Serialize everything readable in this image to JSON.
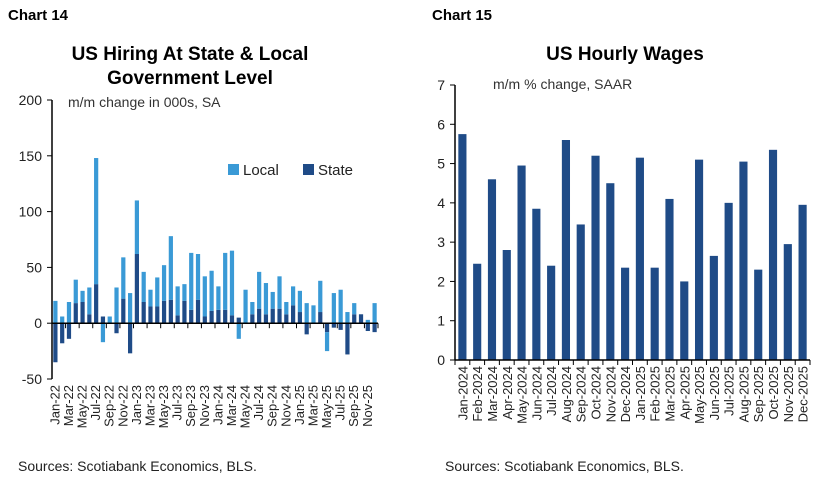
{
  "chart_data": [
    {
      "type": "bar",
      "stacked": true,
      "label": "Chart 14",
      "title": "US Hiring At State & Local Government Level",
      "subtitle": "m/m change in 000s, SA",
      "source": "Sources: Scotiabank Economics, BLS.",
      "ylim": [
        -50,
        200
      ],
      "yticks": [
        -50,
        0,
        50,
        100,
        150,
        200
      ],
      "legend_position": "top-right",
      "categories": [
        "Jan-22",
        "Feb-22",
        "Mar-22",
        "Apr-22",
        "May-22",
        "Jun-22",
        "Jul-22",
        "Aug-22",
        "Sep-22",
        "Oct-22",
        "Nov-22",
        "Dec-22",
        "Jan-23",
        "Feb-23",
        "Mar-23",
        "Apr-23",
        "May-23",
        "Jun-23",
        "Jul-23",
        "Aug-23",
        "Sep-23",
        "Oct-23",
        "Nov-23",
        "Dec-23",
        "Jan-24",
        "Feb-24",
        "Mar-24",
        "Apr-24",
        "May-24",
        "Jun-24",
        "Jul-24",
        "Aug-24",
        "Sep-24",
        "Oct-24",
        "Nov-24",
        "Dec-24",
        "Jan-25",
        "Feb-25",
        "Mar-25",
        "Apr-25",
        "May-25",
        "Jun-25",
        "Jul-25",
        "Aug-25",
        "Sep-25",
        "Oct-25",
        "Nov-25",
        "Dec-25"
      ],
      "tick_labels": [
        "Jan-22",
        "Mar-22",
        "May-22",
        "Jul-22",
        "Sep-22",
        "Nov-22",
        "Jan-23",
        "Mar-23",
        "May-23",
        "Jul-23",
        "Sep-23",
        "Nov-23",
        "Jan-24",
        "Mar-24",
        "May-24",
        "Jul-24",
        "Sep-24",
        "Nov-24",
        "Jan-25",
        "Mar-25",
        "May-25",
        "Jul-25",
        "Sep-25",
        "Nov-25"
      ],
      "series": [
        {
          "name": "Local",
          "color": "#3a9ad6",
          "values": [
            20,
            6,
            19,
            21,
            10,
            24,
            113,
            -17,
            6,
            32,
            37,
            27,
            48,
            27,
            15,
            26,
            32,
            57,
            26,
            15,
            51,
            41,
            36,
            36,
            21,
            51,
            58,
            -14,
            30,
            11,
            33,
            28,
            15,
            29,
            11,
            17,
            19,
            18,
            16,
            28,
            -17,
            27,
            30,
            10,
            10,
            0,
            3,
            18
          ]
        },
        {
          "name": "State",
          "color": "#1f4b87",
          "values": [
            -35,
            -18,
            -14,
            18,
            19,
            8,
            35,
            6,
            0,
            -9,
            22,
            -27,
            62,
            19,
            15,
            15,
            20,
            21,
            7,
            20,
            12,
            21,
            6,
            11,
            12,
            12,
            7,
            5,
            0,
            8,
            13,
            8,
            13,
            13,
            8,
            16,
            10,
            -10,
            0,
            10,
            -8,
            -4,
            -6,
            -28,
            8,
            8,
            -7,
            -8
          ]
        }
      ]
    },
    {
      "type": "bar",
      "label": "Chart 15",
      "title": "US Hourly Wages",
      "subtitle": "m/m % change, SAAR",
      "source": "Sources: Scotiabank Economics, BLS.",
      "ylim": [
        0,
        7
      ],
      "yticks": [
        0,
        1,
        2,
        3,
        4,
        5,
        6,
        7
      ],
      "color": "#1f4b87",
      "categories": [
        "Jan-2024",
        "Feb-2024",
        "Mar-2024",
        "Apr-2024",
        "May-2024",
        "Jun-2024",
        "Jul-2024",
        "Aug-2024",
        "Sep-2024",
        "Oct-2024",
        "Nov-2024",
        "Dec-2024",
        "Jan-2025",
        "Feb-2025",
        "Mar-2025",
        "Apr-2025",
        "May-2025",
        "Jun-2025",
        "Jul-2025",
        "Aug-2025",
        "Sep-2025",
        "Oct-2025",
        "Nov-2025",
        "Dec-2025"
      ],
      "values": [
        5.75,
        2.45,
        4.6,
        2.8,
        4.95,
        3.85,
        2.4,
        5.6,
        3.45,
        5.2,
        4.5,
        2.35,
        5.15,
        2.35,
        4.1,
        2.0,
        5.1,
        2.65,
        4.0,
        5.05,
        2.3,
        5.35,
        2.95,
        3.95
      ]
    }
  ]
}
